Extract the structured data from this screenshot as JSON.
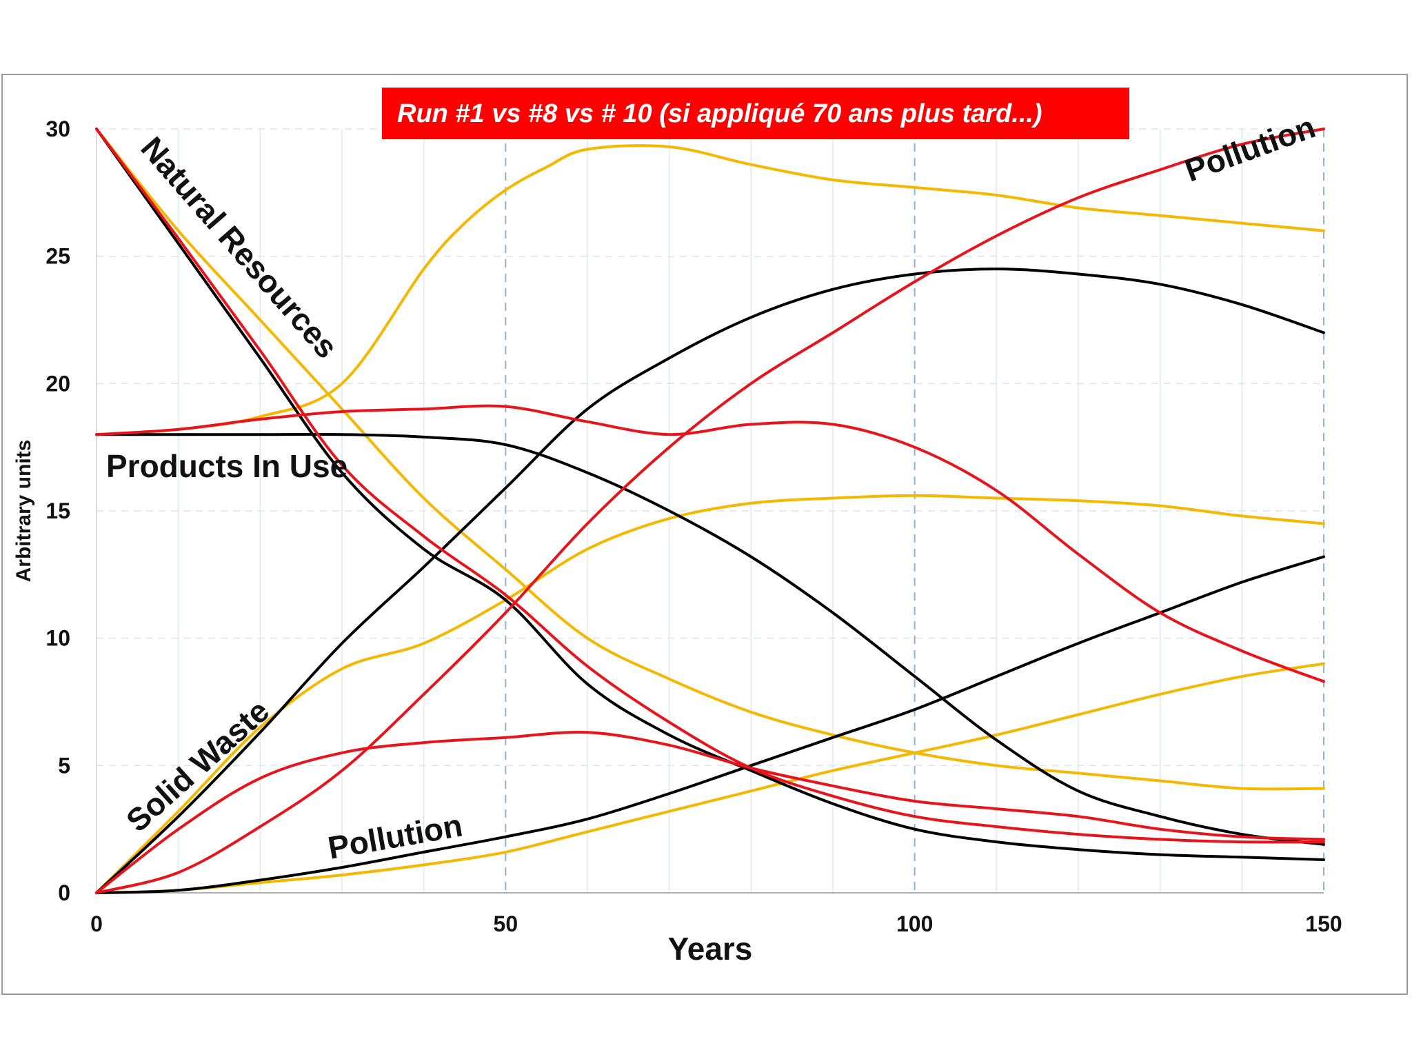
{
  "chart_data": {
    "type": "line",
    "title": "Run #1 vs #8 vs # 10 (si appliqué 70 ans plus tard...)",
    "title_bg": "#ff0000",
    "xlabel": "Years",
    "ylabel": "Arbitrary units",
    "xlim": [
      0,
      150
    ],
    "ylim": [
      0,
      30
    ],
    "x_ticks": [
      "0",
      "50",
      "100",
      "150"
    ],
    "y_ticks": [
      "0",
      "5",
      "10",
      "15",
      "20",
      "25",
      "30"
    ],
    "grid": true,
    "colors": {
      "run1": "#000000",
      "run8": "#f5b800",
      "run10": "#e8141c"
    },
    "annotations": {
      "natural_resources": "Natural Resources",
      "products_in_use": "Products In Use",
      "solid_waste": "Solid Waste",
      "pollution_top": "Pollution",
      "pollution_bottom": "Pollution"
    },
    "series": [
      {
        "name": "Natural Resources (Run #1)",
        "run": "run1",
        "x": [
          0,
          10,
          20,
          30,
          40,
          50,
          60,
          70,
          80,
          90,
          100,
          110,
          120,
          130,
          140,
          150
        ],
        "y": [
          30,
          25.5,
          21,
          16.5,
          13.5,
          11.5,
          8.2,
          6.2,
          4.8,
          3.5,
          2.5,
          2,
          1.7,
          1.5,
          1.4,
          1.3
        ]
      },
      {
        "name": "Natural Resources (Run #8)",
        "run": "run8",
        "x": [
          0,
          10,
          20,
          30,
          40,
          50,
          60,
          70,
          80,
          90,
          100,
          110,
          120,
          130,
          140,
          150
        ],
        "y": [
          30,
          26,
          22.5,
          19,
          15.5,
          12.7,
          10,
          8.4,
          7.1,
          6.2,
          5.5,
          5,
          4.7,
          4.4,
          4.1,
          4.1
        ]
      },
      {
        "name": "Natural Resources (Run #10)",
        "run": "run10",
        "x": [
          0,
          10,
          20,
          30,
          40,
          50,
          60,
          70,
          80,
          90,
          100,
          110,
          120,
          130,
          140,
          150
        ],
        "y": [
          30,
          25.7,
          21.3,
          16.8,
          14,
          11.7,
          8.9,
          6.7,
          4.9,
          3.8,
          3,
          2.6,
          2.3,
          2.1,
          2,
          2
        ]
      },
      {
        "name": "Products In Use (Run #1)",
        "run": "run1",
        "x": [
          0,
          10,
          20,
          30,
          40,
          50,
          60,
          70,
          80,
          90,
          100,
          110,
          120,
          130,
          140,
          150
        ],
        "y": [
          18,
          18,
          18,
          18,
          17.9,
          17.6,
          16.5,
          15,
          13.2,
          11,
          8.5,
          6,
          4,
          3,
          2.3,
          1.9
        ]
      },
      {
        "name": "Products In Use (Run #8)",
        "run": "run8",
        "x": [
          0,
          10,
          20,
          30,
          40,
          45,
          50,
          55,
          60,
          70,
          80,
          90,
          100,
          110,
          120,
          130,
          140,
          150
        ],
        "y": [
          18,
          18.2,
          18.7,
          20,
          24.5,
          26.3,
          27.6,
          28.5,
          29.2,
          29.3,
          28.6,
          28,
          27.7,
          27.4,
          26.9,
          26.6,
          26.3,
          26
        ]
      },
      {
        "name": "Products In Use (Run #10)",
        "run": "run10",
        "x": [
          0,
          10,
          20,
          30,
          40,
          50,
          60,
          70,
          80,
          90,
          100,
          110,
          120,
          130,
          140,
          150
        ],
        "y": [
          18,
          18.2,
          18.6,
          18.9,
          19,
          19.1,
          18.5,
          18,
          18.4,
          18.4,
          17.5,
          15.8,
          13.3,
          11,
          9.5,
          8.3
        ]
      },
      {
        "name": "Solid Waste (Run #1)",
        "run": "run1",
        "x": [
          0,
          10,
          20,
          30,
          40,
          50,
          60,
          70,
          80,
          90,
          100,
          110,
          120,
          130,
          140,
          150
        ],
        "y": [
          0,
          3,
          6.3,
          9.8,
          12.8,
          15.9,
          19,
          21,
          22.6,
          23.7,
          24.3,
          24.5,
          24.3,
          23.9,
          23.1,
          22
        ]
      },
      {
        "name": "Solid Waste (Run #8)",
        "run": "run8",
        "x": [
          0,
          10,
          20,
          30,
          40,
          50,
          60,
          70,
          80,
          90,
          100,
          110,
          120,
          130,
          140,
          150
        ],
        "y": [
          0,
          3.2,
          6.5,
          8.8,
          9.8,
          11.5,
          13.5,
          14.7,
          15.3,
          15.5,
          15.6,
          15.5,
          15.4,
          15.2,
          14.8,
          14.5
        ]
      },
      {
        "name": "Solid Waste (Run #10)",
        "run": "run10",
        "x": [
          0,
          10,
          20,
          30,
          40,
          50,
          60,
          70,
          80,
          90,
          100,
          110,
          120,
          130,
          140,
          150
        ],
        "y": [
          0,
          2.5,
          4.5,
          5.5,
          5.9,
          6.1,
          6.3,
          5.8,
          4.9,
          4.2,
          3.6,
          3.3,
          3,
          2.5,
          2.2,
          2.1
        ]
      },
      {
        "name": "Pollution (Run #1)",
        "run": "run1",
        "x": [
          0,
          10,
          20,
          30,
          40,
          50,
          60,
          70,
          80,
          90,
          100,
          110,
          120,
          130,
          140,
          150
        ],
        "y": [
          0,
          0.1,
          0.5,
          1,
          1.6,
          2.2,
          2.9,
          3.9,
          5,
          6.1,
          7.2,
          8.5,
          9.8,
          11,
          12.2,
          13.2
        ]
      },
      {
        "name": "Pollution (Run #8)",
        "run": "run8",
        "x": [
          0,
          10,
          20,
          30,
          40,
          50,
          60,
          70,
          80,
          90,
          100,
          110,
          120,
          130,
          140,
          150
        ],
        "y": [
          0,
          0.1,
          0.4,
          0.7,
          1.1,
          1.6,
          2.4,
          3.2,
          4,
          4.8,
          5.5,
          6.2,
          7,
          7.8,
          8.5,
          9
        ]
      },
      {
        "name": "Pollution (Run #10)",
        "run": "run10",
        "x": [
          0,
          10,
          20,
          30,
          40,
          50,
          60,
          70,
          80,
          90,
          100,
          110,
          120,
          130,
          140,
          150
        ],
        "y": [
          0,
          0.8,
          2.6,
          4.8,
          7.8,
          11,
          14.5,
          17.5,
          20,
          22,
          24,
          25.8,
          27.3,
          28.4,
          29.4,
          30
        ]
      }
    ]
  }
}
